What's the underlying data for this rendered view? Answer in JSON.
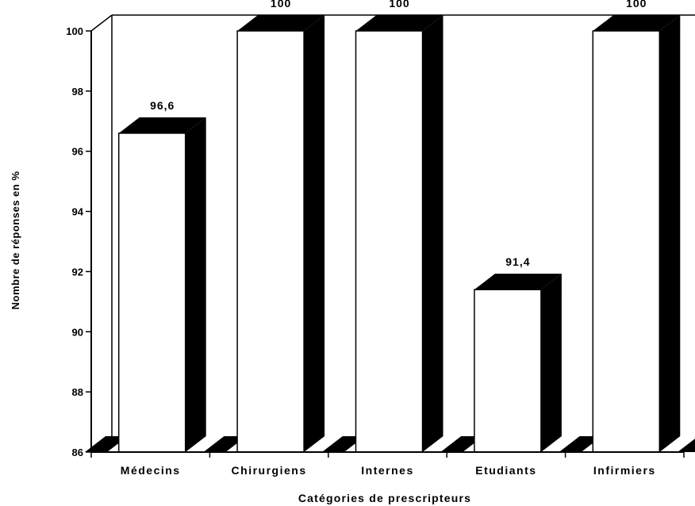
{
  "chart_data": {
    "type": "bar",
    "categories": [
      "Médecins",
      "Chirurgiens",
      "Internes",
      "Etudiants",
      "Infirmiers"
    ],
    "values": [
      96.6,
      100,
      100,
      91.4,
      100
    ],
    "data_labels": [
      "96,6",
      "100",
      "100",
      "91,4",
      "100"
    ],
    "title": "",
    "xlabel": "Catégories de prescripteurs",
    "ylabel": "Nombre de réponses en %",
    "ylim": [
      86,
      100
    ],
    "yticks": [
      86,
      88,
      90,
      92,
      94,
      96,
      98,
      100
    ],
    "grid": false,
    "three_d": true,
    "colors": {
      "bar_face": "#ffffff",
      "bar_shadow": "#000000",
      "axis": "#000000"
    }
  }
}
